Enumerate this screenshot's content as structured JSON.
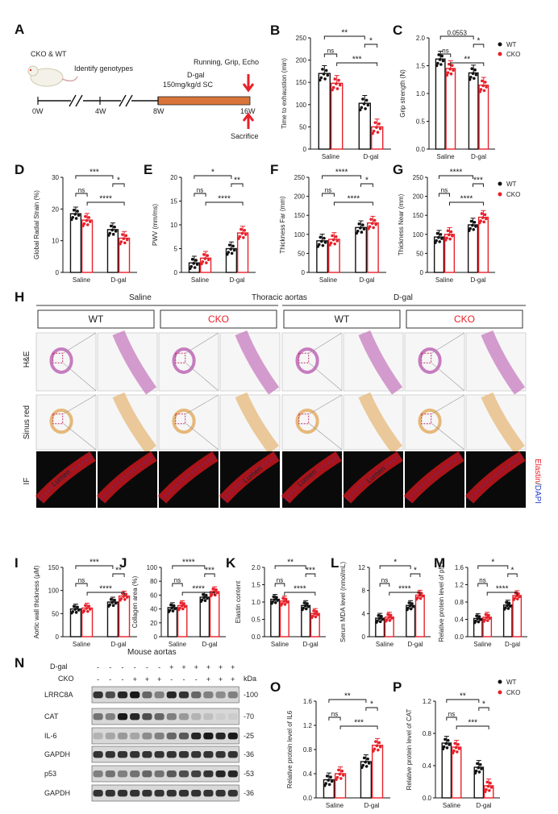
{
  "panel_letters": {
    "A": "A",
    "H": "H",
    "N": "N"
  },
  "timeline": {
    "mouse_label": "CKO & WT",
    "identify": "Identify genotypes",
    "dgal": "D-gal",
    "dose": "150mg/kg/d  SC",
    "tests": "Running, Grip, Echo",
    "sacrifice": "Sacrifice",
    "ticks": [
      "0W",
      "4W",
      "8W",
      "16W"
    ]
  },
  "legend": {
    "wt": "WT",
    "cko": "CKO"
  },
  "colors": {
    "wt": "#111111",
    "cko": "#e8202a",
    "tissue_he": "#c77cbf",
    "tissue_sr": "#e6b87a",
    "if_bg": "#0a0a0a",
    "if_red": "#c4161c"
  },
  "histology": {
    "title": "Thoracic aortas",
    "group_saline": "Saline",
    "group_dgal": "D-gal",
    "columns": [
      "WT",
      "CKO",
      "WT",
      "CKO"
    ],
    "rows": [
      "H&E",
      "Sinus red",
      "IF"
    ],
    "lumen": "Lumen",
    "if_label_elastin": "Elastin",
    "if_label_sep": "/",
    "if_label_dapi": "DAPI"
  },
  "western": {
    "title": "Mouse aortas",
    "row_dgal": "D-gal",
    "row_cko": "CKO",
    "dgal_signs": [
      "-",
      "-",
      "-",
      "-",
      "-",
      "-",
      "+",
      "+",
      "+",
      "+",
      "+",
      "+"
    ],
    "cko_signs": [
      "-",
      "-",
      "-",
      "+",
      "+",
      "+",
      "-",
      "-",
      "-",
      "+",
      "+",
      "+"
    ],
    "kda_label": "kDa",
    "bands": [
      {
        "name": "LRRC8A",
        "kda": "-100"
      },
      {
        "name": "CAT",
        "kda": "-70"
      },
      {
        "name": "IL-6",
        "kda": "-25"
      },
      {
        "name": "GAPDH",
        "kda": "-36"
      },
      {
        "name": "p53",
        "kda": "-53"
      },
      {
        "name": "GAPDH",
        "kda": "-36"
      }
    ]
  },
  "chart_data": [
    {
      "id": "B",
      "type": "bar",
      "categories": [
        "Saline",
        "D-gal"
      ],
      "ylabel": "Time to exhaustion (min)",
      "ylim": [
        0,
        250
      ],
      "yticks": [
        0,
        50,
        100,
        150,
        200,
        250
      ],
      "series": [
        {
          "name": "WT",
          "values": [
            170,
            103
          ]
        },
        {
          "name": "CKO",
          "values": [
            148,
            50
          ]
        }
      ],
      "annotations": [
        {
          "text": "**",
          "from": 0,
          "to": 2,
          "level": 0
        },
        {
          "text": "*",
          "from": 2,
          "to": 3,
          "level": 1
        },
        {
          "text": "ns",
          "from": 0,
          "to": 1,
          "level": 2
        },
        {
          "text": "***",
          "from": 1,
          "to": 3,
          "level": 3
        }
      ]
    },
    {
      "id": "C",
      "type": "bar",
      "categories": [
        "Saline",
        "D-gal"
      ],
      "ylabel": "Grip strength (N)",
      "ylim": [
        0,
        2.0
      ],
      "yticks": [
        0.0,
        0.5,
        1.0,
        1.5,
        2.0
      ],
      "series": [
        {
          "name": "WT",
          "values": [
            1.62,
            1.37
          ]
        },
        {
          "name": "CKO",
          "values": [
            1.45,
            1.15
          ]
        }
      ],
      "annotations": [
        {
          "text": "0.0553",
          "from": 0,
          "to": 2,
          "level": 0
        },
        {
          "text": "*",
          "from": 2,
          "to": 3,
          "level": 1
        },
        {
          "text": "ns",
          "from": 0,
          "to": 1,
          "level": 2
        },
        {
          "text": "**",
          "from": 1,
          "to": 3,
          "level": 3
        }
      ]
    },
    {
      "id": "D",
      "type": "bar",
      "categories": [
        "Saline",
        "D-gal"
      ],
      "ylabel": "Global Radial Strain (%)",
      "ylim": [
        0,
        30
      ],
      "yticks": [
        0,
        10,
        20,
        30
      ],
      "series": [
        {
          "name": "WT",
          "values": [
            18.5,
            13.5
          ]
        },
        {
          "name": "CKO",
          "values": [
            16.5,
            10.8
          ]
        }
      ],
      "annotations": [
        {
          "text": "***",
          "from": 0,
          "to": 2,
          "level": 0
        },
        {
          "text": "*",
          "from": 2,
          "to": 3,
          "level": 1
        },
        {
          "text": "ns",
          "from": 0,
          "to": 1,
          "level": 2
        },
        {
          "text": "****",
          "from": 1,
          "to": 3,
          "level": 3
        }
      ]
    },
    {
      "id": "E",
      "type": "bar",
      "categories": [
        "Saline",
        "D-gal"
      ],
      "ylabel": "PWV (mm/ms)",
      "ylim": [
        0,
        20
      ],
      "yticks": [
        0,
        5,
        10,
        15,
        20
      ],
      "series": [
        {
          "name": "WT",
          "values": [
            2.0,
            5.0
          ]
        },
        {
          "name": "CKO",
          "values": [
            3.0,
            8.3
          ]
        }
      ],
      "annotations": [
        {
          "text": "*",
          "from": 0,
          "to": 2,
          "level": 0
        },
        {
          "text": "**",
          "from": 2,
          "to": 3,
          "level": 1
        },
        {
          "text": "ns",
          "from": 0,
          "to": 1,
          "level": 2
        },
        {
          "text": "****",
          "from": 1,
          "to": 3,
          "level": 3
        }
      ]
    },
    {
      "id": "F",
      "type": "bar",
      "categories": [
        "Saline",
        "D-gal"
      ],
      "ylabel": "Thickness Far (mm)",
      "ylim": [
        0,
        250
      ],
      "yticks": [
        0,
        50,
        100,
        150,
        200,
        250
      ],
      "series": [
        {
          "name": "WT",
          "values": [
            83,
            118
          ]
        },
        {
          "name": "CKO",
          "values": [
            87,
            130
          ]
        }
      ],
      "annotations": [
        {
          "text": "****",
          "from": 0,
          "to": 2,
          "level": 0
        },
        {
          "text": "*",
          "from": 2,
          "to": 3,
          "level": 1
        },
        {
          "text": "ns",
          "from": 0,
          "to": 1,
          "level": 2
        },
        {
          "text": "****",
          "from": 1,
          "to": 3,
          "level": 3
        }
      ]
    },
    {
      "id": "G",
      "type": "bar",
      "categories": [
        "Saline",
        "D-gal"
      ],
      "ylabel": "Thickness Near (mm)",
      "ylim": [
        0,
        250
      ],
      "yticks": [
        0,
        50,
        100,
        150,
        200,
        250
      ],
      "series": [
        {
          "name": "WT",
          "values": [
            93,
            125
          ]
        },
        {
          "name": "CKO",
          "values": [
            100,
            145
          ]
        }
      ],
      "annotations": [
        {
          "text": "****",
          "from": 0,
          "to": 2,
          "level": 0
        },
        {
          "text": "***",
          "from": 2,
          "to": 3,
          "level": 1
        },
        {
          "text": "ns",
          "from": 0,
          "to": 1,
          "level": 2
        },
        {
          "text": "****",
          "from": 1,
          "to": 3,
          "level": 3
        }
      ]
    },
    {
      "id": "I",
      "type": "bar",
      "categories": [
        "Saline",
        "D-gal"
      ],
      "ylabel": "Aortic wall thickness (μM)",
      "ylim": [
        0,
        150
      ],
      "yticks": [
        0,
        50,
        100,
        150
      ],
      "series": [
        {
          "name": "WT",
          "values": [
            60,
            75
          ]
        },
        {
          "name": "CKO",
          "values": [
            62,
            88
          ]
        }
      ],
      "annotations": [
        {
          "text": "***",
          "from": 0,
          "to": 2,
          "level": 0
        },
        {
          "text": "**",
          "from": 2,
          "to": 3,
          "level": 1
        },
        {
          "text": "ns",
          "from": 0,
          "to": 1,
          "level": 2
        },
        {
          "text": "****",
          "from": 1,
          "to": 3,
          "level": 3
        }
      ]
    },
    {
      "id": "J",
      "type": "bar",
      "categories": [
        "Saline",
        "D-gal"
      ],
      "ylabel": "Collagen area (%)",
      "ylim": [
        0,
        100
      ],
      "yticks": [
        0,
        20,
        40,
        60,
        80,
        100
      ],
      "series": [
        {
          "name": "WT",
          "values": [
            42,
            57
          ]
        },
        {
          "name": "CKO",
          "values": [
            45,
            65
          ]
        }
      ],
      "annotations": [
        {
          "text": "****",
          "from": 0,
          "to": 2,
          "level": 0
        },
        {
          "text": "***",
          "from": 2,
          "to": 3,
          "level": 1
        },
        {
          "text": "ns",
          "from": 0,
          "to": 1,
          "level": 2
        },
        {
          "text": "****",
          "from": 1,
          "to": 3,
          "level": 3
        }
      ]
    },
    {
      "id": "K",
      "type": "bar",
      "categories": [
        "Saline",
        "D-gal"
      ],
      "ylabel": "Elastin content",
      "ylim": [
        0,
        2.0
      ],
      "yticks": [
        0.0,
        0.5,
        1.0,
        1.5,
        2.0
      ],
      "series": [
        {
          "name": "WT",
          "values": [
            1.08,
            0.9
          ]
        },
        {
          "name": "CKO",
          "values": [
            1.03,
            0.67
          ]
        }
      ],
      "annotations": [
        {
          "text": "**",
          "from": 0,
          "to": 2,
          "level": 0
        },
        {
          "text": "***",
          "from": 2,
          "to": 3,
          "level": 1
        },
        {
          "text": "ns",
          "from": 0,
          "to": 1,
          "level": 2
        },
        {
          "text": "****",
          "from": 1,
          "to": 3,
          "level": 3
        }
      ]
    },
    {
      "id": "L",
      "type": "bar",
      "categories": [
        "Saline",
        "D-gal"
      ],
      "ylabel": "Serum MDA level (nmol/mL)",
      "ylim": [
        0,
        12
      ],
      "yticks": [
        0,
        4,
        8,
        12
      ],
      "series": [
        {
          "name": "WT",
          "values": [
            3.2,
            5.4
          ]
        },
        {
          "name": "CKO",
          "values": [
            3.4,
            7.2
          ]
        }
      ],
      "annotations": [
        {
          "text": "*",
          "from": 0,
          "to": 2,
          "level": 0
        },
        {
          "text": "*",
          "from": 2,
          "to": 3,
          "level": 1
        },
        {
          "text": "ns",
          "from": 0,
          "to": 1,
          "level": 2
        },
        {
          "text": "****",
          "from": 1,
          "to": 3,
          "level": 3
        }
      ]
    },
    {
      "id": "M",
      "type": "bar",
      "categories": [
        "Saline",
        "D-gal"
      ],
      "ylabel": "Relative protein level of p53",
      "ylim": [
        0,
        1.6
      ],
      "yticks": [
        0.0,
        0.4,
        0.8,
        1.2,
        1.6
      ],
      "series": [
        {
          "name": "WT",
          "values": [
            0.42,
            0.73
          ]
        },
        {
          "name": "CKO",
          "values": [
            0.45,
            0.95
          ]
        }
      ],
      "annotations": [
        {
          "text": "*",
          "from": 0,
          "to": 2,
          "level": 0
        },
        {
          "text": "*",
          "from": 2,
          "to": 3,
          "level": 1
        },
        {
          "text": "ns",
          "from": 0,
          "to": 1,
          "level": 2
        },
        {
          "text": "****",
          "from": 1,
          "to": 3,
          "level": 3
        }
      ]
    },
    {
      "id": "O",
      "type": "bar",
      "categories": [
        "Saline",
        "D-gal"
      ],
      "ylabel": "Relative protein level of IL6",
      "ylim": [
        0,
        1.6
      ],
      "yticks": [
        0.0,
        0.4,
        0.8,
        1.2,
        1.6
      ],
      "series": [
        {
          "name": "WT",
          "values": [
            0.3,
            0.6
          ]
        },
        {
          "name": "CKO",
          "values": [
            0.4,
            0.87
          ]
        }
      ],
      "annotations": [
        {
          "text": "**",
          "from": 0,
          "to": 2,
          "level": 0
        },
        {
          "text": "*",
          "from": 2,
          "to": 3,
          "level": 1
        },
        {
          "text": "ns",
          "from": 0,
          "to": 1,
          "level": 2
        },
        {
          "text": "***",
          "from": 1,
          "to": 3,
          "level": 3
        }
      ]
    },
    {
      "id": "P",
      "type": "bar",
      "categories": [
        "Saline",
        "D-gal"
      ],
      "ylabel": "Relative protein level of CAT",
      "ylim": [
        0,
        1.2
      ],
      "yticks": [
        0.0,
        0.4,
        0.8,
        1.2
      ],
      "series": [
        {
          "name": "WT",
          "values": [
            0.68,
            0.38
          ]
        },
        {
          "name": "CKO",
          "values": [
            0.63,
            0.15
          ]
        }
      ],
      "annotations": [
        {
          "text": "**",
          "from": 0,
          "to": 2,
          "level": 0
        },
        {
          "text": "*",
          "from": 2,
          "to": 3,
          "level": 1
        },
        {
          "text": "ns",
          "from": 0,
          "to": 1,
          "level": 2
        },
        {
          "text": "***",
          "from": 1,
          "to": 3,
          "level": 3
        }
      ]
    }
  ]
}
